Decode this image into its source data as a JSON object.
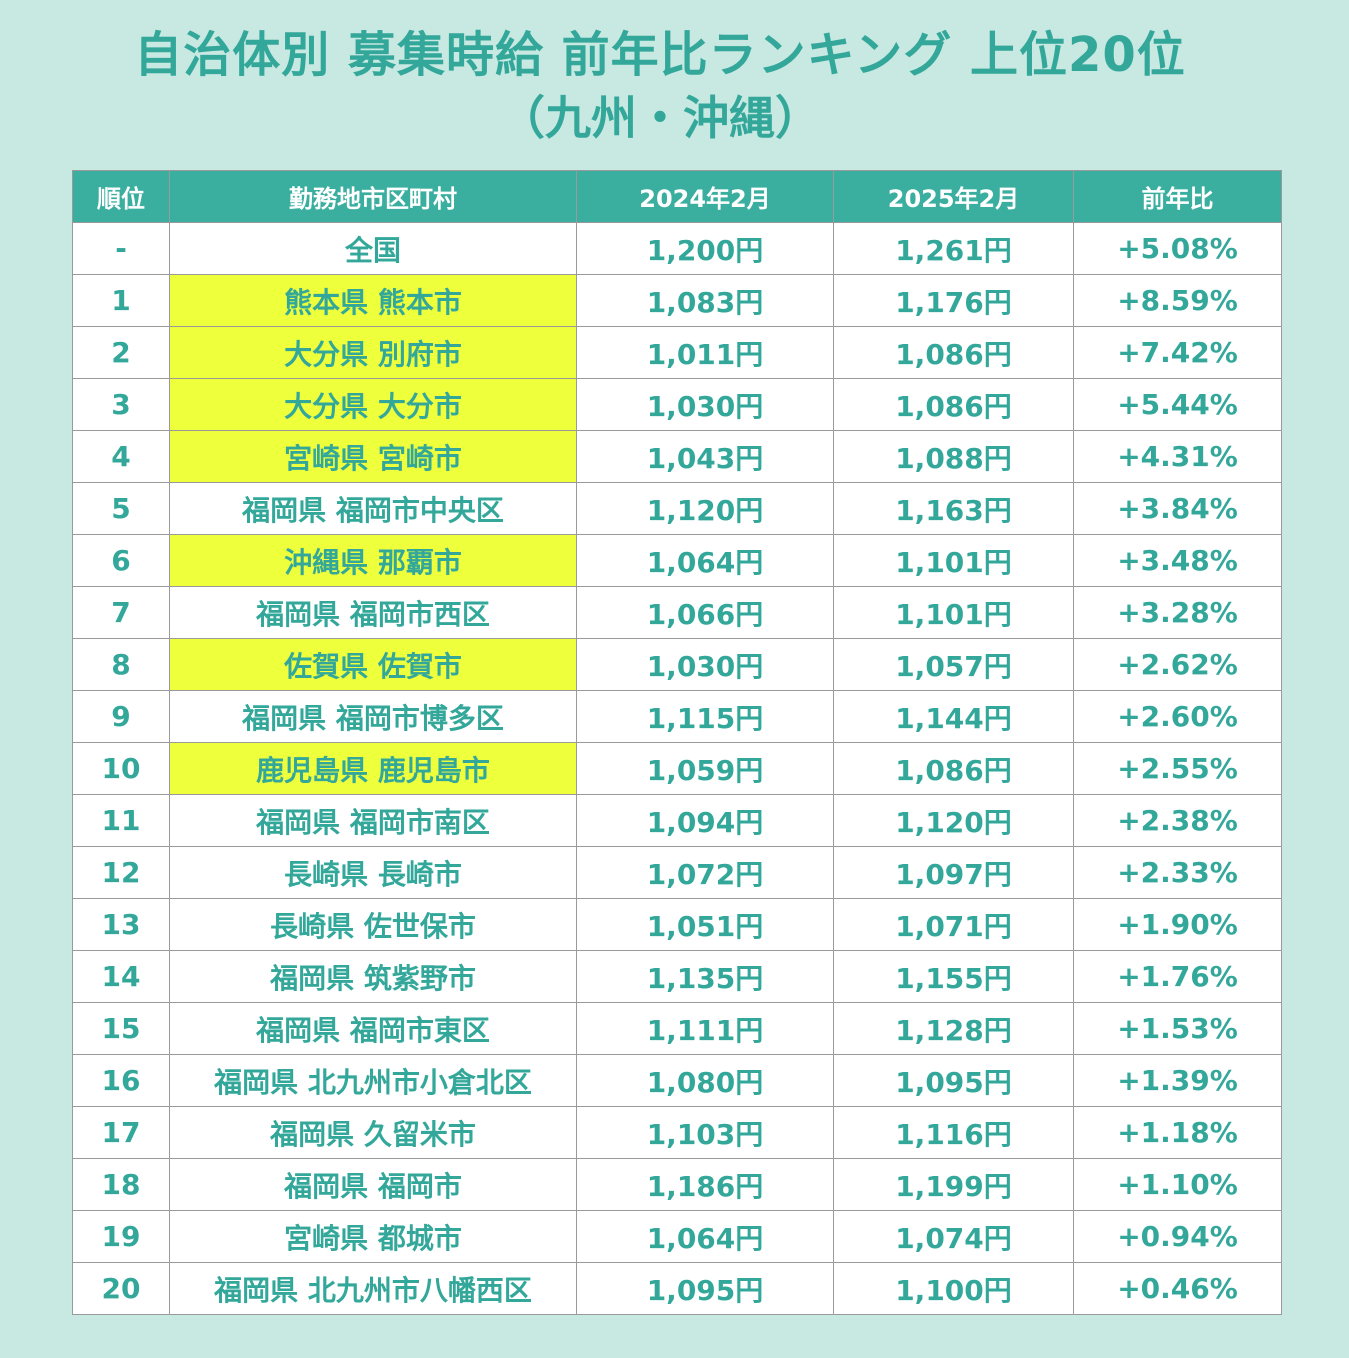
{
  "title": {
    "line1": "自治体別 募集時給 前年比ランキング 上位20位",
    "line2": "（九州・沖縄）"
  },
  "colors": {
    "background": "#c8e8e2",
    "header_bg": "#3aaf9f",
    "text": "#33a89a",
    "highlight": "#eeff3c"
  },
  "table": {
    "headers": [
      "順位",
      "勤務地市区町村",
      "2024年2月",
      "2025年2月",
      "前年比"
    ],
    "rows": [
      {
        "rank": "-",
        "location": "全国",
        "feb2024": "1,200円",
        "feb2025": "1,261円",
        "yoy": "+5.08%",
        "highlight": false
      },
      {
        "rank": "1",
        "location": "熊本県 熊本市",
        "feb2024": "1,083円",
        "feb2025": "1,176円",
        "yoy": "+8.59%",
        "highlight": true
      },
      {
        "rank": "2",
        "location": "大分県 別府市",
        "feb2024": "1,011円",
        "feb2025": "1,086円",
        "yoy": "+7.42%",
        "highlight": true
      },
      {
        "rank": "3",
        "location": "大分県 大分市",
        "feb2024": "1,030円",
        "feb2025": "1,086円",
        "yoy": "+5.44%",
        "highlight": true
      },
      {
        "rank": "4",
        "location": "宮崎県 宮崎市",
        "feb2024": "1,043円",
        "feb2025": "1,088円",
        "yoy": "+4.31%",
        "highlight": true
      },
      {
        "rank": "5",
        "location": "福岡県 福岡市中央区",
        "feb2024": "1,120円",
        "feb2025": "1,163円",
        "yoy": "+3.84%",
        "highlight": false
      },
      {
        "rank": "6",
        "location": "沖縄県 那覇市",
        "feb2024": "1,064円",
        "feb2025": "1,101円",
        "yoy": "+3.48%",
        "highlight": true
      },
      {
        "rank": "7",
        "location": "福岡県 福岡市西区",
        "feb2024": "1,066円",
        "feb2025": "1,101円",
        "yoy": "+3.28%",
        "highlight": false
      },
      {
        "rank": "8",
        "location": "佐賀県 佐賀市",
        "feb2024": "1,030円",
        "feb2025": "1,057円",
        "yoy": "+2.62%",
        "highlight": true
      },
      {
        "rank": "9",
        "location": "福岡県 福岡市博多区",
        "feb2024": "1,115円",
        "feb2025": "1,144円",
        "yoy": "+2.60%",
        "highlight": false
      },
      {
        "rank": "10",
        "location": "鹿児島県 鹿児島市",
        "feb2024": "1,059円",
        "feb2025": "1,086円",
        "yoy": "+2.55%",
        "highlight": true
      },
      {
        "rank": "11",
        "location": "福岡県 福岡市南区",
        "feb2024": "1,094円",
        "feb2025": "1,120円",
        "yoy": "+2.38%",
        "highlight": false
      },
      {
        "rank": "12",
        "location": "長崎県 長崎市",
        "feb2024": "1,072円",
        "feb2025": "1,097円",
        "yoy": "+2.33%",
        "highlight": false
      },
      {
        "rank": "13",
        "location": "長崎県 佐世保市",
        "feb2024": "1,051円",
        "feb2025": "1,071円",
        "yoy": "+1.90%",
        "highlight": false
      },
      {
        "rank": "14",
        "location": "福岡県 筑紫野市",
        "feb2024": "1,135円",
        "feb2025": "1,155円",
        "yoy": "+1.76%",
        "highlight": false
      },
      {
        "rank": "15",
        "location": "福岡県 福岡市東区",
        "feb2024": "1,111円",
        "feb2025": "1,128円",
        "yoy": "+1.53%",
        "highlight": false
      },
      {
        "rank": "16",
        "location": "福岡県 北九州市小倉北区",
        "feb2024": "1,080円",
        "feb2025": "1,095円",
        "yoy": "+1.39%",
        "highlight": false
      },
      {
        "rank": "17",
        "location": "福岡県 久留米市",
        "feb2024": "1,103円",
        "feb2025": "1,116円",
        "yoy": "+1.18%",
        "highlight": false
      },
      {
        "rank": "18",
        "location": "福岡県 福岡市",
        "feb2024": "1,186円",
        "feb2025": "1,199円",
        "yoy": "+1.10%",
        "highlight": false
      },
      {
        "rank": "19",
        "location": "宮崎県 都城市",
        "feb2024": "1,064円",
        "feb2025": "1,074円",
        "yoy": "+0.94%",
        "highlight": false
      },
      {
        "rank": "20",
        "location": "福岡県 北九州市八幡西区",
        "feb2024": "1,095円",
        "feb2025": "1,100円",
        "yoy": "+0.46%",
        "highlight": false
      }
    ]
  }
}
